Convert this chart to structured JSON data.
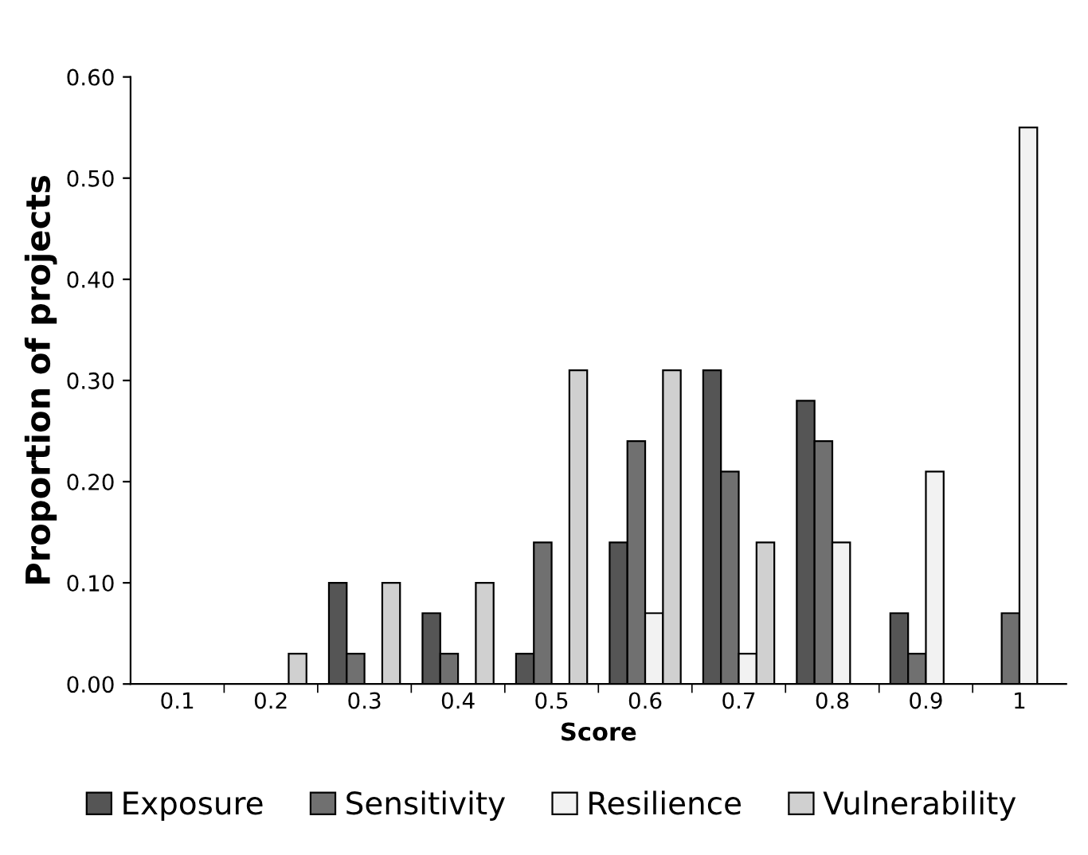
{
  "chart_data": {
    "type": "bar",
    "xlabel": "Score",
    "ylabel": "Proportion of projects",
    "categories": [
      "0.1",
      "0.2",
      "0.3",
      "0.4",
      "0.5",
      "0.6",
      "0.7",
      "0.8",
      "0.9",
      "1"
    ],
    "series": [
      {
        "name": "Exposure",
        "color": "#555555",
        "values": [
          null,
          null,
          0.1,
          0.07,
          0.03,
          0.14,
          0.31,
          0.28,
          0.07,
          null
        ]
      },
      {
        "name": "Sensitivity",
        "color": "#707070",
        "values": [
          null,
          null,
          0.03,
          0.03,
          0.14,
          0.24,
          0.21,
          0.24,
          0.03,
          0.07
        ]
      },
      {
        "name": "Resilience",
        "color": "#f2f2f2",
        "values": [
          null,
          null,
          null,
          null,
          null,
          0.07,
          0.03,
          0.14,
          0.21,
          0.55
        ]
      },
      {
        "name": "Vulnerability",
        "color": "#d0d0d0",
        "values": [
          null,
          0.03,
          0.1,
          0.1,
          0.31,
          0.31,
          0.14,
          null,
          null,
          null
        ]
      }
    ],
    "ylim": [
      0,
      0.6
    ],
    "yticks": [
      {
        "value": 0,
        "label": "0.00"
      },
      {
        "value": 0.1,
        "label": "0.10"
      },
      {
        "value": 0.2,
        "label": "0.20"
      },
      {
        "value": 0.3,
        "label": "0.30"
      },
      {
        "value": 0.4,
        "label": "0.40"
      },
      {
        "value": 0.5,
        "label": "0.50"
      },
      {
        "value": 0.6,
        "label": "0.60"
      }
    ],
    "grid": false,
    "legend": "bottom"
  }
}
